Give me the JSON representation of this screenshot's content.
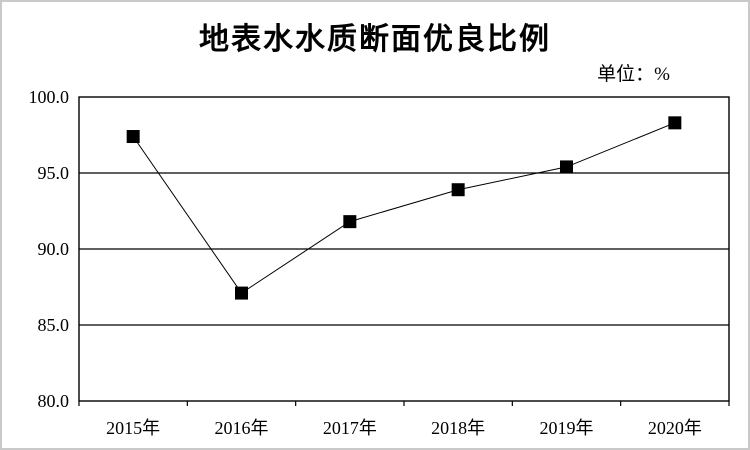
{
  "unit_label": "单位：%",
  "colors": {
    "line": "#000000",
    "marker": "#000000",
    "grid": "#000000",
    "frame": "#000000",
    "text": "#000000",
    "outer_border": "#c9c9c9",
    "background": "#ffffff"
  },
  "chart_data": {
    "type": "line",
    "title": "地表水水质断面优良比例",
    "unit_annotation": "单位：%",
    "categories": [
      "2015年",
      "2016年",
      "2017年",
      "2018年",
      "2019年",
      "2020年"
    ],
    "series": [
      {
        "name": "地表水水质断面优良比例",
        "values": [
          97.4,
          87.1,
          91.8,
          93.9,
          95.4,
          98.3
        ]
      }
    ],
    "xlabel": "",
    "ylabel": "",
    "ylim": [
      80.0,
      100.0
    ],
    "ytick_step": 5.0,
    "ytick_labels": [
      "100.0",
      "95.0",
      "90.0",
      "85.0",
      "80.0"
    ],
    "grid": true,
    "legend_position": "none",
    "marker": "square",
    "marker_size": 13,
    "line_width": 1
  }
}
